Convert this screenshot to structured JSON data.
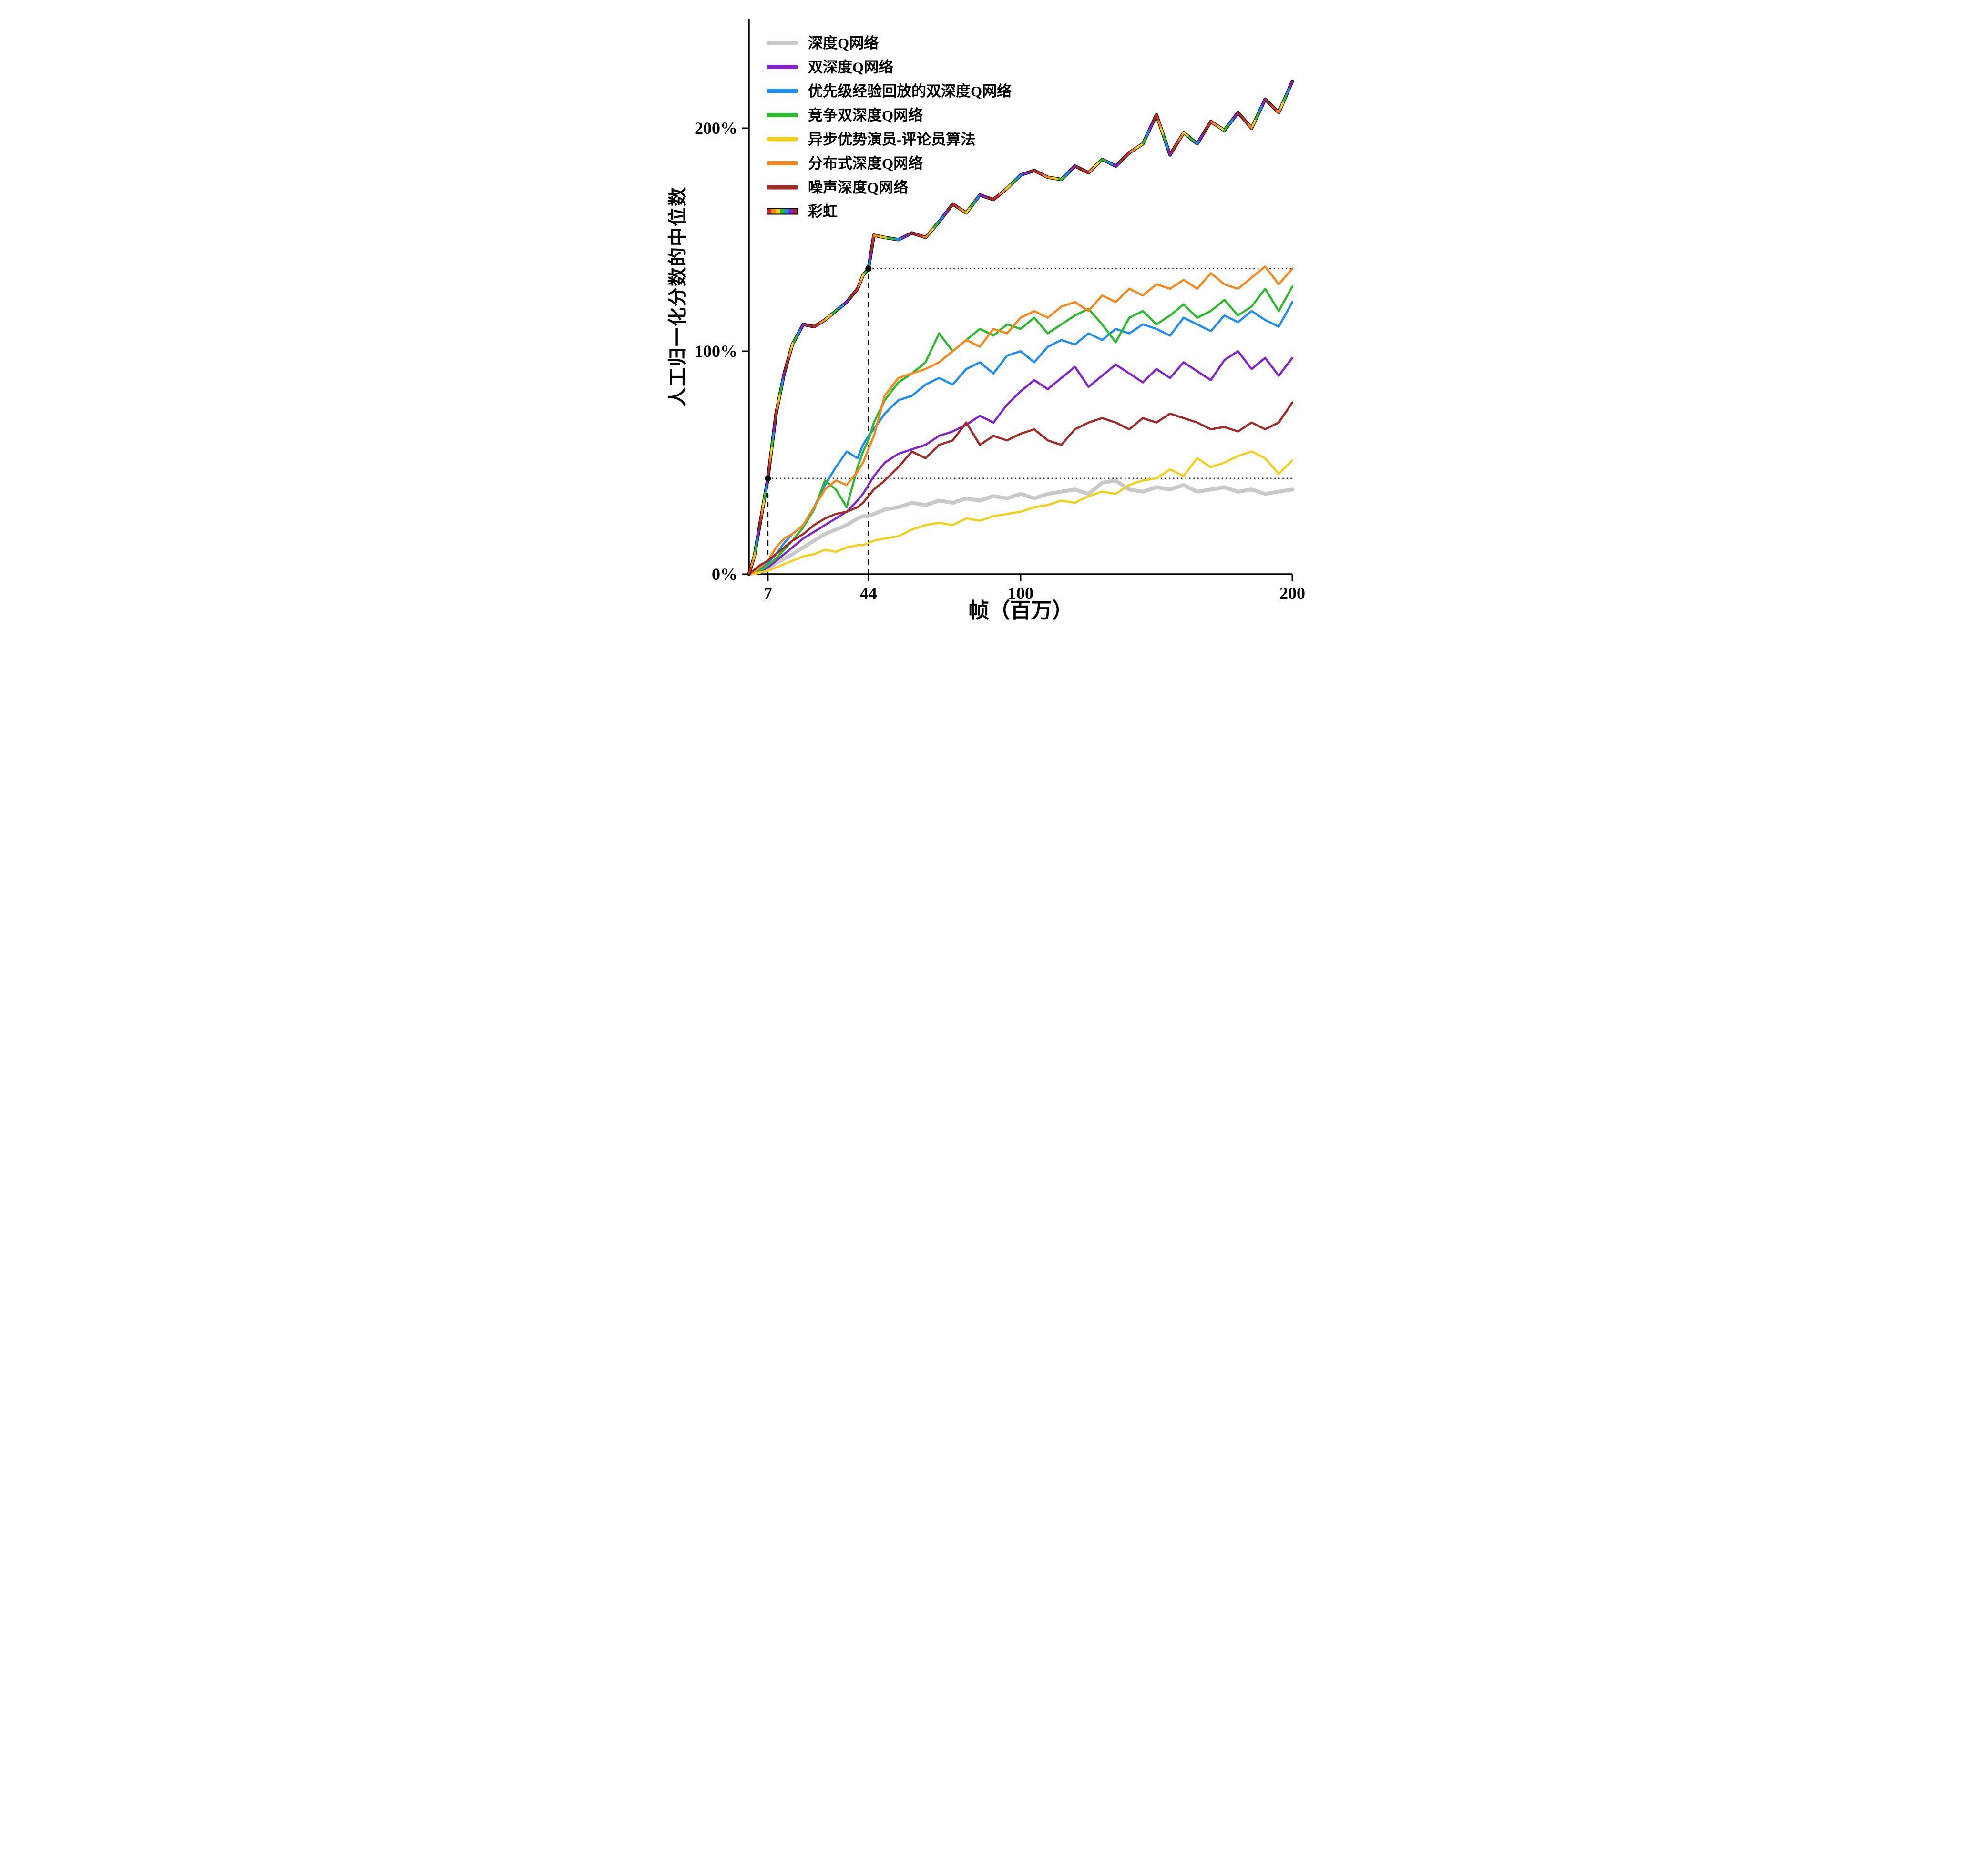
{
  "figure": {
    "background": "#ffffff",
    "axis_color": "#000000",
    "annotation_color": "#000000"
  },
  "chart_data": {
    "type": "line",
    "title": "",
    "xlabel": "帧（百万）",
    "ylabel": "人工归一化分数的中位数",
    "xlim": [
      0,
      200
    ],
    "ylim": [
      0,
      248
    ],
    "grid": false,
    "legend_position": "top-left",
    "x_ticks": [
      {
        "value": 7,
        "label": "7"
      },
      {
        "value": 44,
        "label": "44"
      },
      {
        "value": 100,
        "label": "100"
      },
      {
        "value": 200,
        "label": "200"
      }
    ],
    "y_ticks": [
      {
        "value": 0,
        "label": "0%"
      },
      {
        "value": 100,
        "label": "100%"
      },
      {
        "value": 200,
        "label": "200%"
      }
    ],
    "x": [
      0,
      2,
      4,
      7,
      10,
      13,
      16,
      20,
      24,
      28,
      32,
      36,
      40,
      42,
      44,
      46,
      50,
      55,
      60,
      65,
      70,
      75,
      80,
      85,
      90,
      95,
      100,
      105,
      110,
      115,
      120,
      125,
      130,
      135,
      140,
      145,
      150,
      155,
      160,
      165,
      170,
      175,
      180,
      185,
      190,
      195,
      200
    ],
    "series": [
      {
        "id": "dqn",
        "name": "深度Q网络",
        "color": "#c9c9c9",
        "width": 8,
        "values": [
          0,
          0.5,
          1,
          2.5,
          5,
          7,
          9,
          12,
          15,
          18,
          20,
          22,
          25,
          26,
          26,
          27,
          29,
          30,
          32,
          31,
          33,
          32,
          34,
          33,
          35,
          34,
          36,
          34,
          36,
          37,
          38,
          36,
          41,
          42,
          38,
          37,
          39,
          38,
          40,
          37,
          38,
          39,
          37,
          38,
          36,
          37,
          38
        ]
      },
      {
        "id": "double-dqn",
        "name": "双深度Q网络",
        "color": "#8323cc",
        "width": 4.5,
        "values": [
          0,
          0.5,
          1.5,
          3,
          6,
          9,
          12,
          16,
          19,
          22,
          25,
          28,
          33,
          36,
          40,
          44,
          50,
          54,
          56,
          58,
          62,
          64,
          67,
          71,
          68,
          76,
          82,
          87,
          83,
          88,
          93,
          84,
          89,
          94,
          90,
          86,
          92,
          88,
          95,
          91,
          87,
          96,
          100,
          92,
          97,
          89,
          97
        ]
      },
      {
        "id": "prioritized-ddqn",
        "name": "优先级经验回放的双深度Q网络",
        "color": "#1f8ef0",
        "width": 4.5,
        "values": [
          0,
          0.5,
          2,
          5,
          9,
          14,
          18,
          22,
          30,
          40,
          48,
          55,
          52,
          58,
          62,
          65,
          72,
          78,
          80,
          85,
          88,
          85,
          92,
          95,
          90,
          98,
          100,
          95,
          102,
          105,
          103,
          108,
          105,
          110,
          108,
          112,
          110,
          107,
          115,
          112,
          109,
          116,
          113,
          118,
          114,
          111,
          122
        ]
      },
      {
        "id": "dueling-ddqn",
        "name": "竞争双深度Q网络",
        "color": "#2db92d",
        "width": 4.5,
        "values": [
          0,
          0.5,
          1.5,
          4,
          7,
          11,
          15,
          21,
          29,
          42,
          38,
          30,
          48,
          55,
          60,
          68,
          78,
          86,
          90,
          95,
          108,
          100,
          105,
          110,
          107,
          112,
          110,
          115,
          108,
          112,
          116,
          119,
          112,
          104,
          115,
          118,
          112,
          116,
          121,
          115,
          118,
          123,
          116,
          120,
          128,
          118,
          129
        ]
      },
      {
        "id": "a3c",
        "name": "异步优势演员-评论员算法",
        "color": "#f2cf1d",
        "width": 4.5,
        "values": [
          0,
          0.3,
          0.8,
          1.5,
          3,
          4.5,
          6,
          8,
          9,
          11,
          10,
          12,
          13,
          13,
          14,
          15,
          16,
          17,
          20,
          22,
          23,
          22,
          25,
          24,
          26,
          27,
          28,
          30,
          31,
          33,
          32,
          35,
          37,
          36,
          40,
          42,
          43,
          47,
          44,
          52,
          48,
          50,
          53,
          55,
          52,
          45,
          51
        ]
      },
      {
        "id": "distributional-dqn",
        "name": "分布式深度Q网络",
        "color": "#f5871f",
        "width": 4.5,
        "values": [
          0,
          1,
          3,
          6,
          12,
          16,
          18,
          22,
          30,
          38,
          42,
          40,
          46,
          50,
          56,
          62,
          80,
          88,
          90,
          92,
          95,
          100,
          105,
          102,
          110,
          108,
          115,
          118,
          115,
          120,
          122,
          118,
          125,
          122,
          128,
          125,
          130,
          128,
          132,
          128,
          135,
          130,
          128,
          133,
          138,
          130,
          137
        ]
      },
      {
        "id": "noisy-dqn",
        "name": "噪声深度Q网络",
        "color": "#9e2b25",
        "width": 4.5,
        "values": [
          0,
          2,
          4,
          6,
          9,
          12,
          15,
          18,
          22,
          25,
          27,
          28,
          30,
          32,
          35,
          38,
          42,
          48,
          55,
          52,
          58,
          60,
          68,
          58,
          62,
          60,
          63,
          65,
          60,
          58,
          65,
          68,
          70,
          68,
          65,
          70,
          68,
          72,
          70,
          68,
          65,
          66,
          64,
          68,
          65,
          68,
          77
        ]
      },
      {
        "id": "rainbow",
        "name": "彩虹",
        "rainbow": true,
        "width": 4.5,
        "palette": [
          "#d62b28",
          "#f5871f",
          "#f2cf1d",
          "#2db92d",
          "#1f8ef0",
          "#8323cc",
          "#9e2b25"
        ],
        "values": [
          0,
          8,
          22,
          43,
          72,
          90,
          103,
          112,
          111,
          114,
          118,
          122,
          128,
          134,
          137,
          152,
          151,
          150,
          153,
          151,
          158,
          166,
          162,
          170,
          168,
          173,
          179,
          181,
          178,
          177,
          183,
          180,
          186,
          183,
          189,
          193,
          206,
          188,
          198,
          193,
          203,
          199,
          207,
          200,
          213,
          207,
          221
        ]
      }
    ],
    "annotations": {
      "points": [
        {
          "x": 7,
          "y": 43
        },
        {
          "x": 44,
          "y": 137
        }
      ],
      "dashed_vlines": [
        {
          "x": 7,
          "y": 43
        },
        {
          "x": 44,
          "y": 137
        }
      ],
      "dotted_hlines": [
        {
          "y": 43,
          "x_from": 7
        },
        {
          "y": 137,
          "x_from": 44
        }
      ]
    }
  }
}
